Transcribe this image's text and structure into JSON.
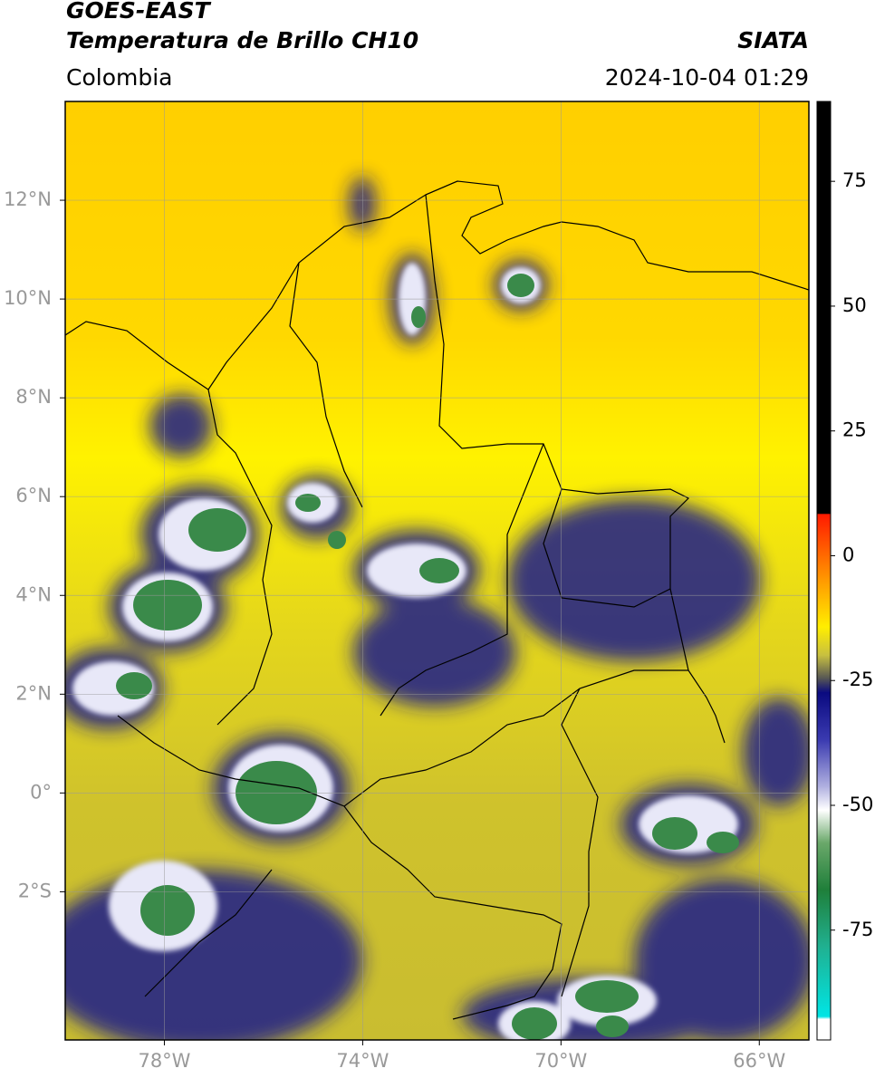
{
  "header": {
    "title": "GOES-EAST",
    "subtitle": "Temperatura de Brillo CH10",
    "region": "Colombia",
    "source": "SIATA",
    "datetime": "2024-10-04 01:29"
  },
  "map": {
    "xlim": [
      -80,
      -65
    ],
    "ylim": [
      -5,
      14
    ],
    "grid": true,
    "xticks": [
      {
        "value": -78,
        "label": "78°W"
      },
      {
        "value": -74,
        "label": "74°W"
      },
      {
        "value": -70,
        "label": "70°W"
      },
      {
        "value": -66,
        "label": "66°W"
      }
    ],
    "yticks": [
      {
        "value": 12,
        "label": "12°N"
      },
      {
        "value": 10,
        "label": "10°N"
      },
      {
        "value": 8,
        "label": "8°N"
      },
      {
        "value": 6,
        "label": "6°N"
      },
      {
        "value": 4,
        "label": "4°N"
      },
      {
        "value": 2,
        "label": "2°N"
      },
      {
        "value": 0,
        "label": "0°"
      },
      {
        "value": -2,
        "label": "2°S"
      }
    ]
  },
  "colorbar": {
    "lim": [
      -97,
      91
    ],
    "ticks": [
      75,
      50,
      25,
      0,
      -25,
      -50,
      -75
    ]
  }
}
